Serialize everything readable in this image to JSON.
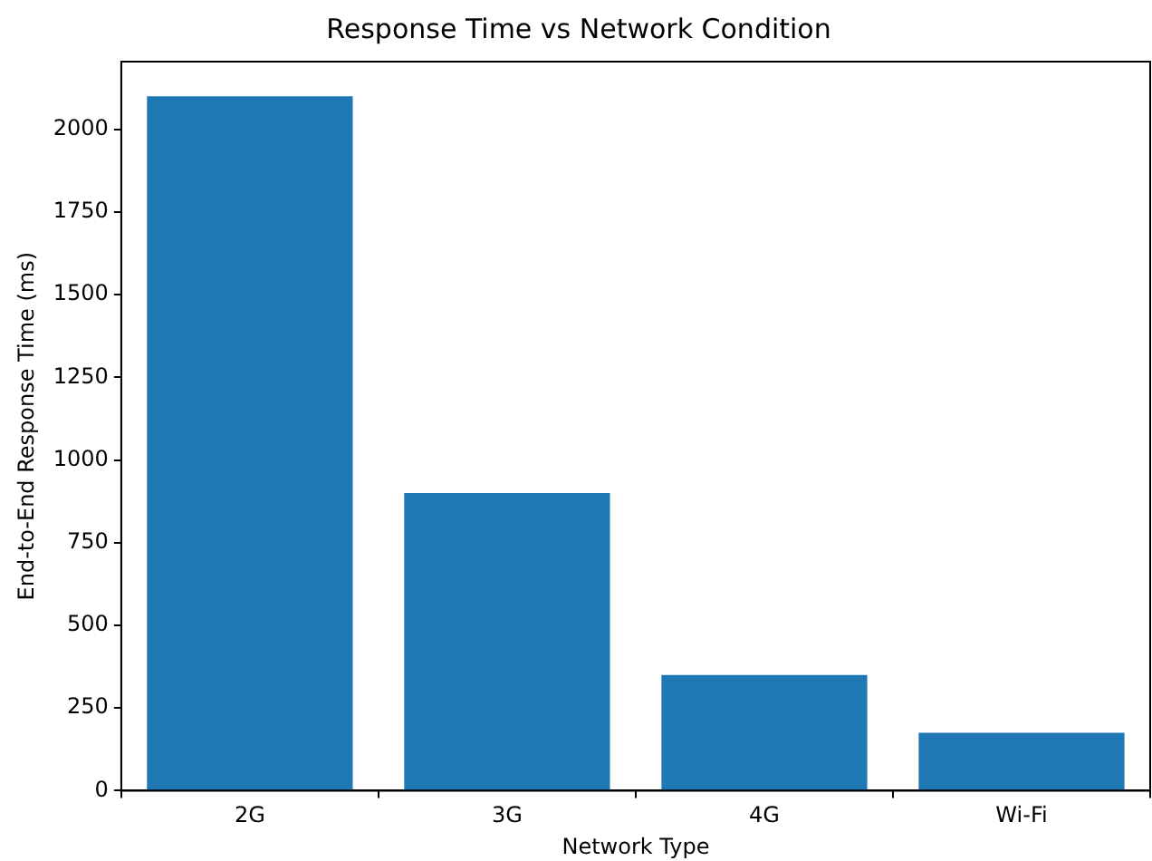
{
  "chart_data": {
    "type": "bar",
    "title": "Response Time vs Network Condition",
    "xlabel": "Network Type",
    "ylabel": "End-to-End Response Time (ms)",
    "categories": [
      "2G",
      "3G",
      "4G",
      "Wi-Fi"
    ],
    "values": [
      2100,
      900,
      350,
      175
    ],
    "color": "#1f77b4",
    "ylim": [
      0,
      2205
    ],
    "yticks": [
      0,
      250,
      500,
      750,
      1000,
      1250,
      1500,
      1750,
      2000
    ],
    "grid": false,
    "legend": false
  }
}
